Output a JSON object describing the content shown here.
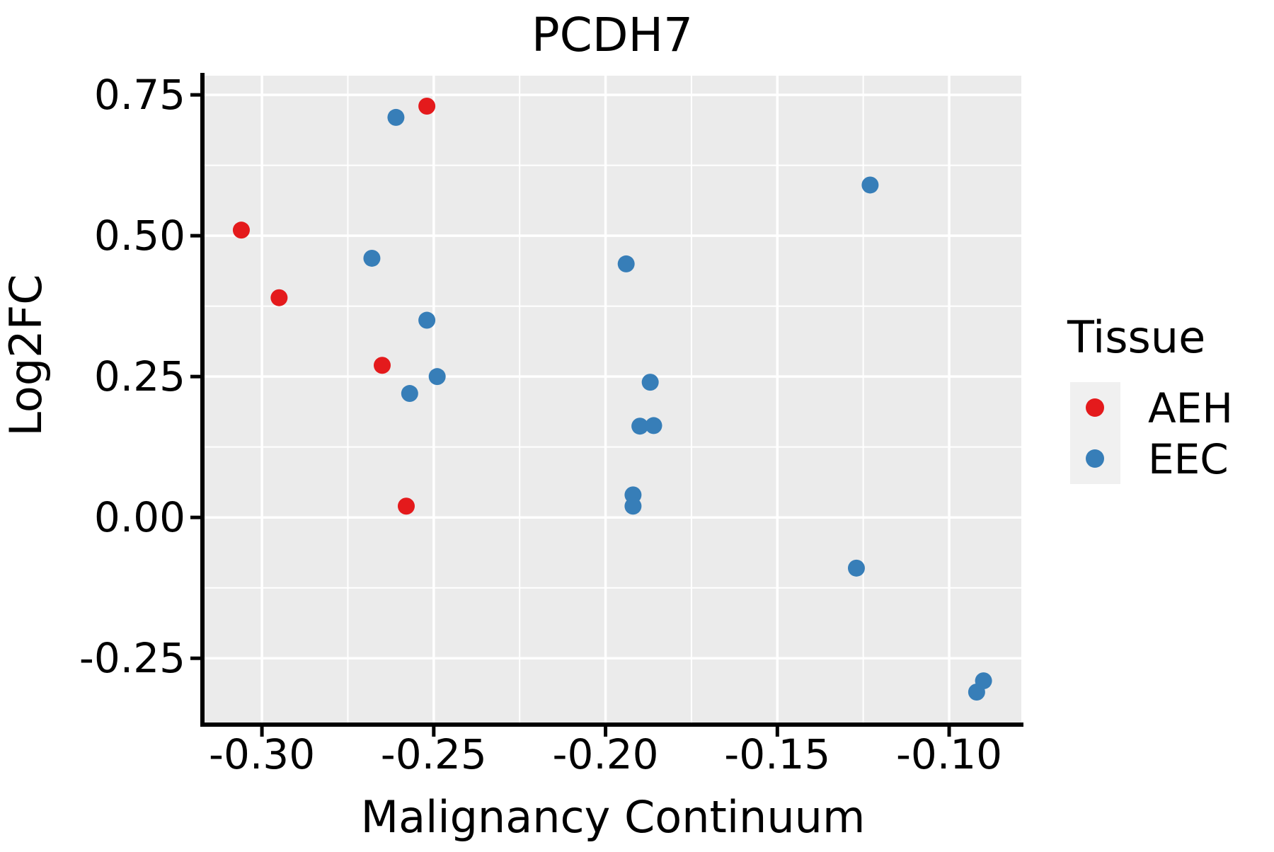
{
  "chart_data": {
    "type": "scatter",
    "title": "PCDH7",
    "xlabel": "Malignancy Continuum",
    "ylabel": "Log2FC",
    "legend_title": "Tissue",
    "legend_position": "right",
    "grid": "major and minor white gridlines on grey panel",
    "xlim": [
      -0.3167,
      -0.079
    ],
    "ylim": [
      -0.364,
      0.784
    ],
    "x_major_ticks": [
      -0.3,
      -0.25,
      -0.2,
      -0.15,
      -0.1
    ],
    "x_tick_labels": [
      "-0.30",
      "-0.25",
      "-0.20",
      "-0.15",
      "-0.10"
    ],
    "x_minor_ticks": [
      -0.275,
      -0.225,
      -0.175,
      -0.125
    ],
    "y_major_ticks": [
      0.75,
      0.5,
      0.25,
      0.0,
      -0.25
    ],
    "y_tick_labels": [
      "0.75",
      "0.50",
      "0.25",
      "0.00",
      "-0.25"
    ],
    "y_minor_ticks": [
      0.625,
      0.375,
      0.125,
      -0.125
    ],
    "series": [
      {
        "name": "AEH",
        "color": "#E41A1C",
        "points": [
          [
            -0.306,
            0.51
          ],
          [
            -0.295,
            0.39
          ],
          [
            -0.265,
            0.27
          ],
          [
            -0.258,
            0.02
          ],
          [
            -0.252,
            0.73
          ]
        ]
      },
      {
        "name": "EEC",
        "color": "#377EB8",
        "points": [
          [
            -0.268,
            0.46
          ],
          [
            -0.261,
            0.71
          ],
          [
            -0.257,
            0.22
          ],
          [
            -0.252,
            0.35
          ],
          [
            -0.249,
            0.25
          ],
          [
            -0.194,
            0.45
          ],
          [
            -0.192,
            0.04
          ],
          [
            -0.192,
            0.02
          ],
          [
            -0.19,
            0.162
          ],
          [
            -0.186,
            0.163
          ],
          [
            -0.187,
            0.24
          ],
          [
            -0.127,
            -0.09
          ],
          [
            -0.123,
            0.59
          ],
          [
            -0.092,
            -0.31
          ],
          [
            -0.09,
            -0.29
          ]
        ]
      }
    ],
    "colors": {
      "panel_background": "#EBEBEB",
      "gridline": "#FFFFFF",
      "axis": "#000000",
      "text": "#000000",
      "legend_key_background": "#F0F0F0",
      "aeh": "#E41A1C",
      "eec": "#377EB8"
    }
  }
}
